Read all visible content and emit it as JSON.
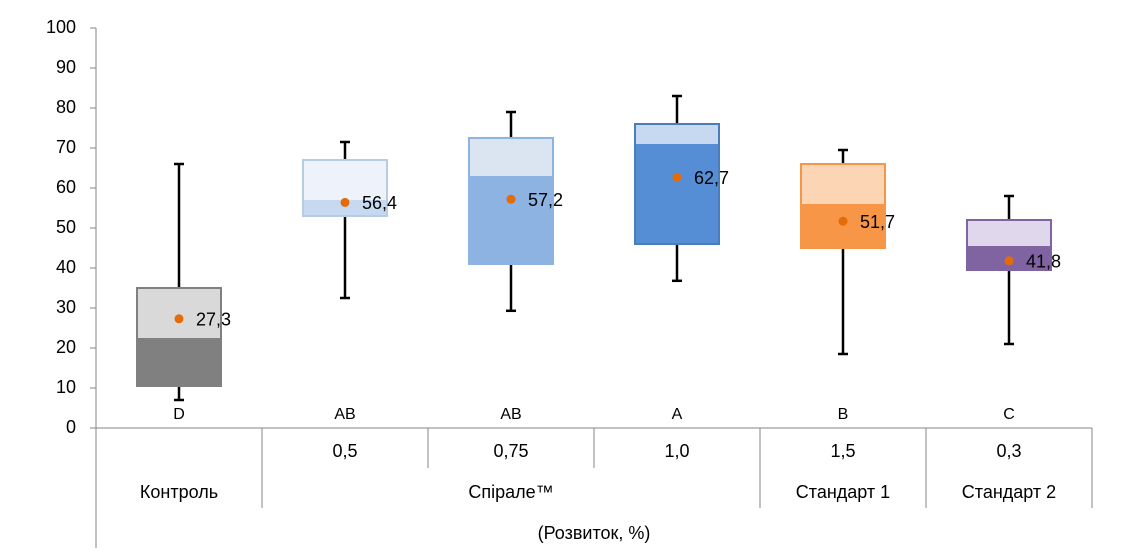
{
  "chart_data": {
    "type": "box",
    "ylim": [
      0,
      100
    ],
    "yticks": [
      0,
      10,
      20,
      30,
      40,
      50,
      60,
      70,
      80,
      90,
      100
    ],
    "categories": [
      null,
      "0,5",
      "0,75",
      "1,0",
      "1,5",
      "0,3"
    ],
    "groups": [
      {
        "label": "Контроль",
        "span": 1
      },
      {
        "label": "Спірале™",
        "span": 3
      },
      {
        "label": "Стандарт 1",
        "span": 1
      },
      {
        "label": "Стандарт 2",
        "span": 1
      }
    ],
    "x_label": "(Розвиток, %)",
    "mean_color": "#e36c09",
    "boxes": [
      {
        "low": 7,
        "q1": 10.5,
        "median": 22.5,
        "q3": 35,
        "high": 66,
        "mean": 27.3,
        "mean_label": "27,3",
        "letter": "D",
        "dark": "#808080",
        "light": "#d9d9d9",
        "border": "#808080"
      },
      {
        "low": 32.5,
        "q1": 53,
        "median": 57,
        "q3": 67,
        "high": 71.5,
        "mean": 56.4,
        "mean_label": "56,4",
        "letter": "AB",
        "dark": "#c6d9f0",
        "light": "#eef3fb",
        "border": "#b8cce4"
      },
      {
        "low": 29.3,
        "q1": 41,
        "median": 63,
        "q3": 72.5,
        "high": 79,
        "mean": 57.2,
        "mean_label": "57,2",
        "letter": "AB",
        "dark": "#8db3e2",
        "light": "#dbe5f1",
        "border": "#8db3e2"
      },
      {
        "low": 36.8,
        "q1": 46,
        "median": 71,
        "q3": 76,
        "high": 83,
        "mean": 62.7,
        "mean_label": "62,7",
        "letter": "A",
        "dark": "#558ed5",
        "light": "#c6d9f0",
        "border": "#4a7ebb"
      },
      {
        "low": 18.5,
        "q1": 45,
        "median": 56,
        "q3": 66,
        "high": 69.5,
        "mean": 51.7,
        "mean_label": "51,7",
        "letter": "B",
        "dark": "#f79646",
        "light": "#fcd5b4",
        "border": "#f79646"
      },
      {
        "low": 21,
        "q1": 39.5,
        "median": 45.5,
        "q3": 52,
        "high": 58,
        "mean": 41.8,
        "mean_label": "41,8",
        "letter": "C",
        "dark": "#8064a2",
        "light": "#e0d7ec",
        "border": "#8064a2"
      }
    ]
  }
}
